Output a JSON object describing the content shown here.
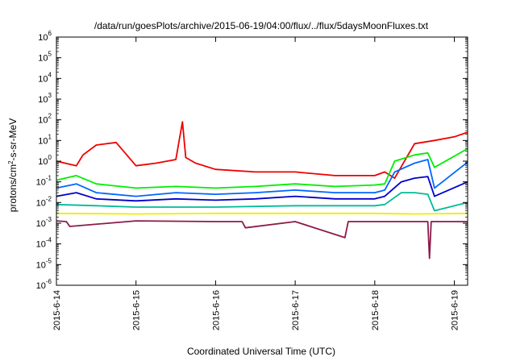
{
  "chart_data": {
    "type": "line",
    "title": "/data/run/goesPlots/archive/2015-06-19/04:00/flux/../flux/5daysMoonFluxes.txt",
    "xlabel": "Coordinated Universal Time (UTC)",
    "ylabel_parts": [
      "protons/cm",
      "2",
      "-s-sr-MeV"
    ],
    "x_range": [
      "2015-06-14T00:00",
      "2015-06-19T04:00"
    ],
    "x_ticks": [
      "2015-6-14",
      "2015-6-15",
      "2015-6-16",
      "2015-6-17",
      "2015-6-18",
      "2015-6-19"
    ],
    "y_scale": "log",
    "y_range": [
      1e-06,
      1000000.0
    ],
    "y_ticks": [
      {
        "base": "10",
        "exp": "-6"
      },
      {
        "base": "10",
        "exp": "-5"
      },
      {
        "base": "10",
        "exp": "-4"
      },
      {
        "base": "10",
        "exp": "-3"
      },
      {
        "base": "10",
        "exp": "-2"
      },
      {
        "base": "10",
        "exp": "-1"
      },
      {
        "base": "10",
        "exp": "0"
      },
      {
        "base": "10",
        "exp": "1"
      },
      {
        "base": "10",
        "exp": "2"
      },
      {
        "base": "10",
        "exp": "3"
      },
      {
        "base": "10",
        "exp": "4"
      },
      {
        "base": "10",
        "exp": "5"
      },
      {
        "base": "10",
        "exp": "6"
      }
    ],
    "grid": false,
    "legend": "none",
    "series": [
      {
        "color": "#ee0000",
        "x": [
          "2015-06-14T00:00",
          "2015-06-14T06:00",
          "2015-06-14T08:00",
          "2015-06-14T12:00",
          "2015-06-14T18:00",
          "2015-06-15T00:00",
          "2015-06-15T06:00",
          "2015-06-15T12:00",
          "2015-06-15T14:00",
          "2015-06-15T15:00",
          "2015-06-15T18:00",
          "2015-06-16T00:00",
          "2015-06-16T12:00",
          "2015-06-17T00:00",
          "2015-06-17T12:00",
          "2015-06-18T00:00",
          "2015-06-18T03:00",
          "2015-06-18T06:00",
          "2015-06-18T12:00",
          "2015-06-18T18:00",
          "2015-06-19T00:00",
          "2015-06-19T04:00"
        ],
        "y": [
          1.0,
          0.6,
          2.0,
          6,
          8,
          0.6,
          0.8,
          1.2,
          80,
          1.5,
          0.8,
          0.4,
          0.3,
          0.3,
          0.2,
          0.2,
          0.3,
          0.15,
          7,
          10,
          15,
          25
        ]
      },
      {
        "color": "#00ee00",
        "x": [
          "2015-06-14T00:00",
          "2015-06-14T06:00",
          "2015-06-14T12:00",
          "2015-06-15T00:00",
          "2015-06-15T12:00",
          "2015-06-16T00:00",
          "2015-06-16T12:00",
          "2015-06-17T00:00",
          "2015-06-17T12:00",
          "2015-06-18T00:00",
          "2015-06-18T03:00",
          "2015-06-18T06:00",
          "2015-06-18T12:00",
          "2015-06-18T16:00",
          "2015-06-18T18:00",
          "2015-06-19T04:00"
        ],
        "y": [
          0.12,
          0.2,
          0.08,
          0.05,
          0.06,
          0.05,
          0.06,
          0.08,
          0.06,
          0.07,
          0.08,
          1.0,
          2.0,
          2.5,
          0.5,
          4
        ]
      },
      {
        "color": "#0066ff",
        "x": [
          "2015-06-14T00:00",
          "2015-06-14T06:00",
          "2015-06-14T12:00",
          "2015-06-15T00:00",
          "2015-06-15T12:00",
          "2015-06-16T00:00",
          "2015-06-16T12:00",
          "2015-06-17T00:00",
          "2015-06-17T12:00",
          "2015-06-18T00:00",
          "2015-06-18T03:00",
          "2015-06-18T06:00",
          "2015-06-18T12:00",
          "2015-06-18T16:00",
          "2015-06-18T18:00",
          "2015-06-19T04:00"
        ],
        "y": [
          0.05,
          0.08,
          0.03,
          0.02,
          0.03,
          0.025,
          0.03,
          0.04,
          0.03,
          0.03,
          0.04,
          0.3,
          0.8,
          1.2,
          0.05,
          0.9
        ]
      },
      {
        "color": "#0000cc",
        "x": [
          "2015-06-14T00:00",
          "2015-06-14T06:00",
          "2015-06-14T12:00",
          "2015-06-15T00:00",
          "2015-06-15T12:00",
          "2015-06-16T00:00",
          "2015-06-16T12:00",
          "2015-06-17T00:00",
          "2015-06-17T12:00",
          "2015-06-18T00:00",
          "2015-06-18T03:00",
          "2015-06-18T08:00",
          "2015-06-18T12:00",
          "2015-06-18T16:00",
          "2015-06-18T18:00",
          "2015-06-19T04:00"
        ],
        "y": [
          0.02,
          0.03,
          0.015,
          0.012,
          0.015,
          0.013,
          0.015,
          0.02,
          0.015,
          0.015,
          0.02,
          0.1,
          0.15,
          0.18,
          0.02,
          0.1
        ]
      },
      {
        "color": "#00bb99",
        "x": [
          "2015-06-14T00:00",
          "2015-06-14T12:00",
          "2015-06-15T00:00",
          "2015-06-16T00:00",
          "2015-06-17T00:00",
          "2015-06-18T00:00",
          "2015-06-18T03:00",
          "2015-06-18T08:00",
          "2015-06-18T12:00",
          "2015-06-18T16:00",
          "2015-06-18T18:00",
          "2015-06-19T04:00"
        ],
        "y": [
          0.008,
          0.007,
          0.006,
          0.006,
          0.007,
          0.007,
          0.008,
          0.03,
          0.03,
          0.025,
          0.004,
          0.01
        ]
      },
      {
        "color": "#eeee00",
        "x": [
          "2015-06-14T00:00",
          "2015-06-15T00:00",
          "2015-06-16T00:00",
          "2015-06-17T00:00",
          "2015-06-18T00:00",
          "2015-06-18T12:00",
          "2015-06-19T04:00"
        ],
        "y": [
          0.003,
          0.0028,
          0.003,
          0.003,
          0.003,
          0.0028,
          0.003
        ]
      },
      {
        "color": "#8b1a4a",
        "x": [
          "2015-06-14T00:00",
          "2015-06-14T03:00",
          "2015-06-14T04:00",
          "2015-06-15T00:00",
          "2015-06-16T00:00",
          "2015-06-16T08:00",
          "2015-06-16T09:00",
          "2015-06-17T00:00",
          "2015-06-17T15:00",
          "2015-06-17T16:00",
          "2015-06-18T00:00",
          "2015-06-18T16:00",
          "2015-06-18T16:30",
          "2015-06-18T17:00",
          "2015-06-19T04:00"
        ],
        "y": [
          0.0013,
          0.0012,
          0.0007,
          0.0013,
          0.0012,
          0.0012,
          0.0006,
          0.0012,
          0.0002,
          0.0012,
          0.0012,
          0.0012,
          2e-05,
          0.0012,
          0.0012
        ]
      }
    ]
  }
}
